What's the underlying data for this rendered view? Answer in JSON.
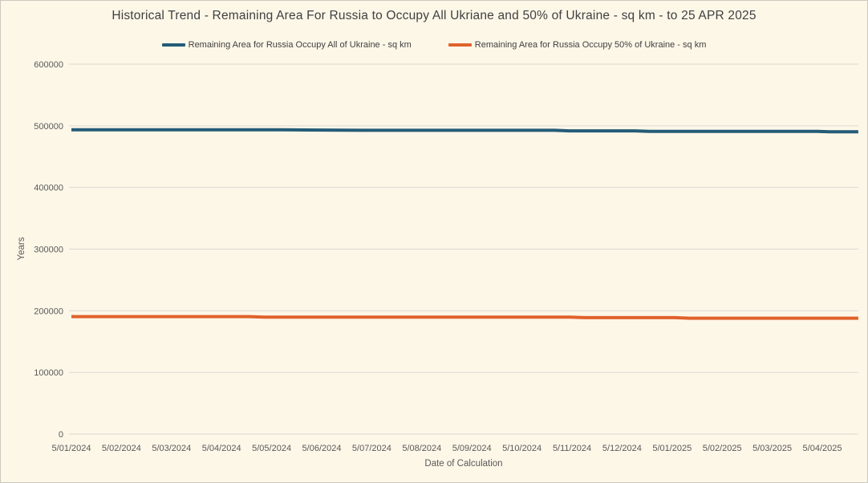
{
  "window": {
    "background_color": "#FDF7E8",
    "border_color": "#CBC8C0",
    "gridline_color": "#DBD8D0",
    "tick_text_color": "#595959",
    "title_text_color": "#404040"
  },
  "chart_data": {
    "type": "line",
    "title": "Historical Trend - Remaining Area For Russia to Occupy All Ukriane and 50% of Ukraine - sq km - to 25 APR 2025",
    "xlabel": "Date of Calculation",
    "ylabel": "Years",
    "ylim": [
      0,
      600000
    ],
    "y_ticks": [
      0,
      100000,
      200000,
      300000,
      400000,
      500000,
      600000
    ],
    "x_tick_labels": [
      "5/01/2024",
      "5/02/2024",
      "5/03/2024",
      "5/04/2024",
      "5/05/2024",
      "5/06/2024",
      "5/07/2024",
      "5/08/2024",
      "5/09/2024",
      "5/10/2024",
      "5/11/2024",
      "5/12/2024",
      "5/01/2025",
      "5/02/2025",
      "5/03/2025",
      "5/04/2025"
    ],
    "grid": true,
    "legend_position": "top",
    "x_unit": "months_since_first_tick",
    "series": [
      {
        "name": "Remaining Area for Russia Occupy All of Ukraine - sq km",
        "color": "#245C77",
        "points": [
          [
            0,
            493500
          ],
          [
            4.2,
            493500
          ],
          [
            5.8,
            492800
          ],
          [
            9.65,
            492800
          ],
          [
            9.95,
            491900
          ],
          [
            11.25,
            491900
          ],
          [
            11.55,
            491000
          ],
          [
            14.9,
            491000
          ],
          [
            15.15,
            490300
          ],
          [
            15.72,
            490300
          ]
        ]
      },
      {
        "name": "Remaining Area for Russia Occupy 50% of Ukraine - sq km",
        "color": "#E0622C",
        "points": [
          [
            0,
            190500
          ],
          [
            3.55,
            190500
          ],
          [
            3.85,
            189700
          ],
          [
            9.95,
            189700
          ],
          [
            10.25,
            188800
          ],
          [
            12.05,
            188800
          ],
          [
            12.35,
            188000
          ],
          [
            15.72,
            188000
          ]
        ]
      }
    ]
  }
}
